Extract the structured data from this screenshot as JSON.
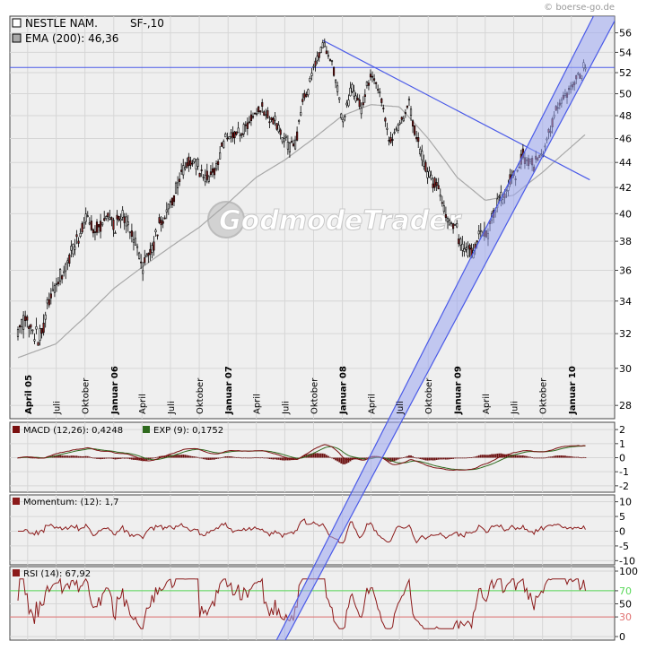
{
  "watermark": "© boerse-go.de",
  "logo_text": "GodmodeTrader",
  "colors": {
    "price_up": "#ffffff",
    "price_down": "#8b1a1a",
    "price_wick": "#000000",
    "ema": "#a8a8a8",
    "trendline": "#4a5ae8",
    "channel_fill": "#9ba5f0",
    "macd_line": "#7a1010",
    "signal_line": "#2f6a1e",
    "histogram": "#6b0f0f",
    "indicator_line": "#8b1a1a",
    "rsi_upper": "#58d858",
    "rsi_lower": "#e07070",
    "plot_bg": "#efefef",
    "grid": "#d6d6d6"
  },
  "chart_data": [
    {
      "type": "candlestick",
      "panel": "price",
      "legend": [
        {
          "label": "NESTLE NAM.",
          "extra": "SF-,10"
        },
        {
          "label": "EMA (200): 46,36"
        }
      ],
      "y_ticks": [
        28,
        30,
        32,
        34,
        36,
        38,
        40,
        42,
        44,
        46,
        48,
        50,
        52,
        54,
        56
      ],
      "ylim": [
        27.5,
        57
      ],
      "y_scale": "log",
      "x_ticks": [
        "April 05",
        "Juli",
        "Oktober",
        "Januar 06",
        "April",
        "Juli",
        "Oktober",
        "Januar 07",
        "April",
        "Juli",
        "Oktober",
        "Januar 08",
        "April",
        "Juli",
        "Oktober",
        "Januar 09",
        "April",
        "Juli",
        "Oktober",
        "Januar 10"
      ],
      "x_ticks_bold": [
        "April 05",
        "Januar 06",
        "Januar 07",
        "Januar 08",
        "Januar 09",
        "Januar 10"
      ],
      "close_path": [
        {
          "x": "2005-03-01",
          "y": 31.8
        },
        {
          "x": "2005-04-01",
          "y": 32.6
        },
        {
          "x": "2005-05-01",
          "y": 31.6
        },
        {
          "x": "2005-06-01",
          "y": 33.4
        },
        {
          "x": "2005-07-01",
          "y": 35.2
        },
        {
          "x": "2005-08-01",
          "y": 36.5
        },
        {
          "x": "2005-09-01",
          "y": 38.0
        },
        {
          "x": "2005-10-01",
          "y": 39.5
        },
        {
          "x": "2005-11-01",
          "y": 39.2
        },
        {
          "x": "2005-12-01",
          "y": 39.8
        },
        {
          "x": "2006-01-01",
          "y": 38.6
        },
        {
          "x": "2006-02-01",
          "y": 39.5
        },
        {
          "x": "2006-03-01",
          "y": 38.6
        },
        {
          "x": "2006-04-01",
          "y": 36.3
        },
        {
          "x": "2006-05-01",
          "y": 37.0
        },
        {
          "x": "2006-06-01",
          "y": 39.8
        },
        {
          "x": "2006-07-01",
          "y": 41.0
        },
        {
          "x": "2006-08-01",
          "y": 43.0
        },
        {
          "x": "2006-09-01",
          "y": 43.8
        },
        {
          "x": "2006-10-01",
          "y": 43.2
        },
        {
          "x": "2006-11-01",
          "y": 43.0
        },
        {
          "x": "2006-12-01",
          "y": 44.2
        },
        {
          "x": "2007-01-01",
          "y": 46.2
        },
        {
          "x": "2007-02-01",
          "y": 47.2
        },
        {
          "x": "2007-03-01",
          "y": 47.0
        },
        {
          "x": "2007-04-01",
          "y": 48.8
        },
        {
          "x": "2007-05-01",
          "y": 48.4
        },
        {
          "x": "2007-06-01",
          "y": 47.4
        },
        {
          "x": "2007-07-01",
          "y": 46.8
        },
        {
          "x": "2007-08-01",
          "y": 45.0
        },
        {
          "x": "2007-09-01",
          "y": 50.0
        },
        {
          "x": "2007-10-01",
          "y": 52.2
        },
        {
          "x": "2007-11-01",
          "y": 54.5
        },
        {
          "x": "2007-12-01",
          "y": 52.8
        },
        {
          "x": "2008-01-01",
          "y": 48.0
        },
        {
          "x": "2008-02-01",
          "y": 50.2
        },
        {
          "x": "2008-03-01",
          "y": 48.5
        },
        {
          "x": "2008-04-01",
          "y": 51.5
        },
        {
          "x": "2008-05-01",
          "y": 50.0
        },
        {
          "x": "2008-06-01",
          "y": 45.5
        },
        {
          "x": "2008-07-01",
          "y": 47.5
        },
        {
          "x": "2008-08-01",
          "y": 49.5
        },
        {
          "x": "2008-09-01",
          "y": 46.0
        },
        {
          "x": "2008-10-01",
          "y": 43.5
        },
        {
          "x": "2008-11-01",
          "y": 42.0
        },
        {
          "x": "2008-12-01",
          "y": 39.5
        },
        {
          "x": "2009-01-01",
          "y": 38.0
        },
        {
          "x": "2009-02-01",
          "y": 36.2
        },
        {
          "x": "2009-03-01",
          "y": 37.5
        },
        {
          "x": "2009-04-01",
          "y": 38.5
        },
        {
          "x": "2009-05-01",
          "y": 40.0
        },
        {
          "x": "2009-06-01",
          "y": 41.2
        },
        {
          "x": "2009-07-01",
          "y": 42.5
        },
        {
          "x": "2009-08-01",
          "y": 43.8
        },
        {
          "x": "2009-09-01",
          "y": 43.6
        },
        {
          "x": "2009-10-01",
          "y": 44.5
        },
        {
          "x": "2009-11-01",
          "y": 47.5
        },
        {
          "x": "2009-12-01",
          "y": 49.5
        },
        {
          "x": "2010-01-01",
          "y": 50.5
        },
        {
          "x": "2010-02-15",
          "y": 52.7
        }
      ],
      "ema_path": [
        {
          "x": "2005-03-01",
          "y": 30.6
        },
        {
          "x": "2005-07-01",
          "y": 31.4
        },
        {
          "x": "2005-10-01",
          "y": 33.0
        },
        {
          "x": "2006-01-01",
          "y": 34.8
        },
        {
          "x": "2006-04-01",
          "y": 36.2
        },
        {
          "x": "2006-07-01",
          "y": 37.6
        },
        {
          "x": "2006-10-01",
          "y": 39.0
        },
        {
          "x": "2007-01-01",
          "y": 40.8
        },
        {
          "x": "2007-04-01",
          "y": 42.8
        },
        {
          "x": "2007-07-01",
          "y": 44.2
        },
        {
          "x": "2007-10-01",
          "y": 46.0
        },
        {
          "x": "2008-01-01",
          "y": 48.0
        },
        {
          "x": "2008-04-01",
          "y": 49.0
        },
        {
          "x": "2008-07-01",
          "y": 48.8
        },
        {
          "x": "2008-10-01",
          "y": 46.0
        },
        {
          "x": "2009-01-01",
          "y": 42.8
        },
        {
          "x": "2009-04-01",
          "y": 41.0
        },
        {
          "x": "2009-07-01",
          "y": 41.4
        },
        {
          "x": "2009-10-01",
          "y": 43.2
        },
        {
          "x": "2010-01-01",
          "y": 45.3
        },
        {
          "x": "2010-02-15",
          "y": 46.36
        }
      ],
      "horizontal_line": 52.5,
      "trendlines": [
        {
          "name": "resistance",
          "from": {
            "x": "2007-11-01",
            "y": 55.2
          },
          "to": {
            "x": "2010-03-01",
            "y": 42.6
          }
        },
        {
          "name": "channel-upper",
          "from": {
            "x": "2009-03-01",
            "y": 37.5
          },
          "to": {
            "x": "2010-03-01",
            "y": 57.0
          }
        },
        {
          "name": "channel-lower",
          "from": {
            "x": "2009-03-01",
            "y": 35.2
          },
          "to": {
            "x": "2010-03-01",
            "y": 52.5
          }
        }
      ]
    },
    {
      "type": "line",
      "panel": "macd",
      "legend": [
        {
          "label": "MACD (12,26): 0,4248"
        },
        {
          "label": "EXP (9): 0,1752"
        }
      ],
      "y_ticks": [
        2,
        1,
        0,
        -1,
        -2
      ],
      "ylim": [
        -2.2,
        2.2
      ],
      "series": [
        {
          "name": "MACD (12,26)",
          "last": 0.4248
        },
        {
          "name": "EXP (9)",
          "last": 0.1752
        }
      ]
    },
    {
      "type": "line",
      "panel": "momentum",
      "legend": [
        {
          "label": "Momentum: (12): 1,7"
        }
      ],
      "y_ticks": [
        10,
        5,
        0,
        -5,
        -10
      ],
      "ylim": [
        -10.5,
        10.5
      ],
      "series": [
        {
          "name": "Momentum (12)",
          "last": 1.7
        }
      ]
    },
    {
      "type": "line",
      "panel": "rsi",
      "legend": [
        {
          "label": "RSI (14): 67,92"
        }
      ],
      "y_ticks": [
        100,
        70,
        50,
        30,
        0
      ],
      "y_tick_colors": {
        "70": "#58d858",
        "30": "#e07070"
      },
      "ylim": [
        0,
        100
      ],
      "reference_lines": [
        70,
        30
      ],
      "series": [
        {
          "name": "RSI (14)",
          "last": 67.92
        }
      ]
    }
  ]
}
